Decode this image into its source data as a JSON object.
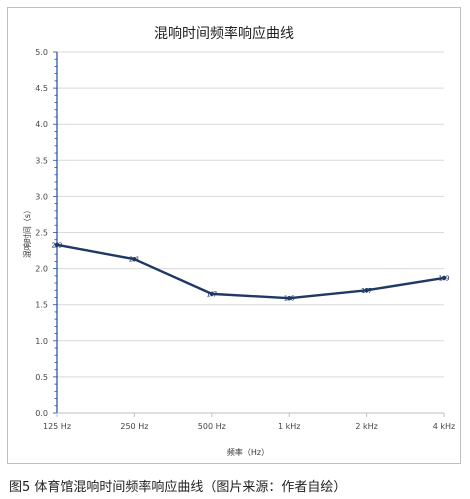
{
  "chart_data": {
    "type": "line",
    "title": "混响时间频率响应曲线",
    "xlabel": "频率（Hz）",
    "ylabel": "混响时间（s）",
    "categories": [
      "125 Hz",
      "250 Hz",
      "500 Hz",
      "1 kHz",
      "2 kHz",
      "4 kHz"
    ],
    "series": [
      {
        "values": [
          2.33,
          2.13,
          1.65,
          1.59,
          1.7,
          1.87
        ],
        "labels": [
          "2.3",
          "2.1",
          "1.7",
          "1.6",
          "1.7",
          "1.9"
        ]
      }
    ],
    "ylim": [
      0,
      5.0
    ],
    "yticks": [
      "0.0",
      "0.5",
      "1.0",
      "1.5",
      "2.0",
      "2.5",
      "3.0",
      "3.5",
      "4.0",
      "4.5",
      "5.0"
    ],
    "grid": true,
    "colors": {
      "line": "#1f3864",
      "grid": "#d9d9d9",
      "axis": "#1f4e9e"
    }
  },
  "caption": "图5 体育馆混响时间频率响应曲线（图片来源：作者自绘）"
}
